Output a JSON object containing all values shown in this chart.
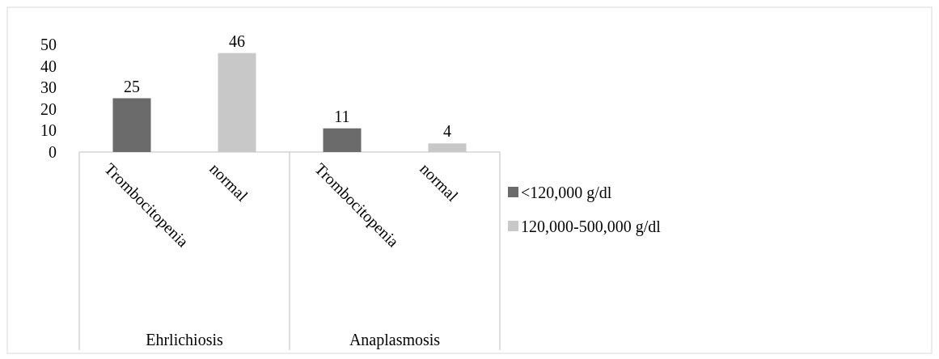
{
  "chart_data": {
    "type": "bar",
    "categories": [
      "Trombocitopenia",
      "normal",
      "Trombocitopenia",
      "normal"
    ],
    "annotations": [
      "Ehrlichiosis",
      "Anaplasmosis"
    ],
    "series": [
      {
        "name": "<120,000 g/dl",
        "color": "#6b6b6b",
        "values": [
          25,
          null,
          11,
          null
        ]
      },
      {
        "name": "120,000-500,000 g/dl",
        "color": "#c8c8c8",
        "values": [
          null,
          46,
          null,
          4
        ]
      }
    ],
    "ylim": [
      0,
      50
    ],
    "yticks": [
      0,
      10,
      20,
      30,
      40,
      50
    ],
    "data_labels": true,
    "legend": "right",
    "grid": false
  }
}
